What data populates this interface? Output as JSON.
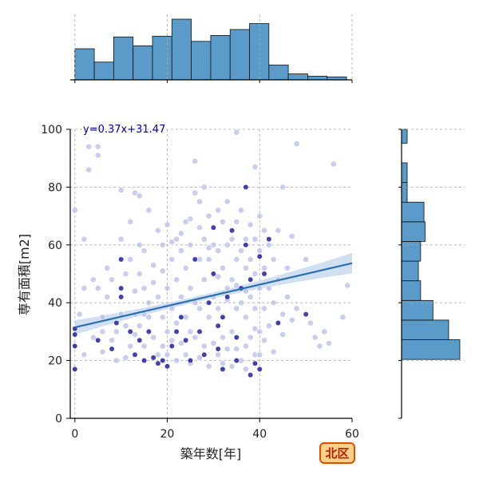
{
  "chart_data": {
    "type": "scatter",
    "title": "",
    "xlabel": "築年数[年]",
    "ylabel": "専有面積[m2]",
    "xlim": [
      -1,
      60
    ],
    "ylim": [
      0,
      100
    ],
    "xticks": [
      0,
      20,
      40,
      60
    ],
    "yticks": [
      0,
      20,
      40,
      60,
      80,
      100
    ],
    "grid": true,
    "regression": {
      "label": "y=0.37x+31.47",
      "slope": 0.37,
      "intercept": 31.47,
      "x_range": [
        0,
        60
      ]
    },
    "x_histogram": {
      "bin_edges": [
        0,
        4.2,
        8.4,
        12.6,
        16.8,
        21,
        25.2,
        29.4,
        33.6,
        37.8,
        42,
        46.2,
        50.4,
        54.6,
        58.8
      ],
      "heights": [
        42,
        24,
        58,
        46,
        59,
        82,
        52,
        60,
        68,
        76,
        20,
        8,
        5,
        4
      ]
    },
    "y_histogram": {
      "bin_edges": [
        0,
        6.8,
        13.6,
        20.4,
        27.2,
        34,
        40.8,
        47.6,
        54.4,
        61.2,
        68,
        74.8,
        81.6,
        88.4,
        95.2,
        100
      ],
      "counts": [
        0,
        0,
        0,
        52,
        42,
        28,
        17,
        15,
        17,
        21,
        20,
        5,
        5,
        0,
        5
      ]
    },
    "points": {
      "dark": [
        [
          0,
          17
        ],
        [
          0,
          25
        ],
        [
          0,
          29
        ],
        [
          0,
          31
        ],
        [
          5,
          27
        ],
        [
          8,
          24
        ],
        [
          10,
          55
        ],
        [
          10,
          45
        ],
        [
          10,
          42
        ],
        [
          12,
          30
        ],
        [
          13,
          22
        ],
        [
          14,
          27
        ],
        [
          15,
          20
        ],
        [
          17,
          21
        ],
        [
          18,
          19
        ],
        [
          19,
          20
        ],
        [
          20,
          18
        ],
        [
          21,
          25
        ],
        [
          22,
          30
        ],
        [
          23,
          35
        ],
        [
          24,
          27
        ],
        [
          25,
          20
        ],
        [
          27,
          30
        ],
        [
          28,
          22
        ],
        [
          29,
          40
        ],
        [
          30,
          66
        ],
        [
          30,
          50
        ],
        [
          31,
          24
        ],
        [
          32,
          35
        ],
        [
          33,
          42
        ],
        [
          34,
          65
        ],
        [
          35,
          20
        ],
        [
          35,
          28
        ],
        [
          36,
          45
        ],
        [
          37,
          80
        ],
        [
          37,
          60
        ],
        [
          38,
          15
        ],
        [
          39,
          19
        ],
        [
          40,
          17
        ],
        [
          40,
          56
        ],
        [
          41,
          50
        ],
        [
          42,
          62
        ],
        [
          44,
          33
        ],
        [
          50,
          36
        ],
        [
          32,
          17
        ],
        [
          38,
          48
        ],
        [
          16,
          30
        ],
        [
          9,
          33
        ],
        [
          26,
          55
        ],
        [
          31,
          32
        ]
      ],
      "light": [
        [
          0,
          72
        ],
        [
          1,
          36
        ],
        [
          2,
          62
        ],
        [
          2,
          45
        ],
        [
          3,
          94
        ],
        [
          3,
          86
        ],
        [
          4,
          28
        ],
        [
          5,
          94
        ],
        [
          5,
          91
        ],
        [
          5,
          45
        ],
        [
          6,
          35
        ],
        [
          6,
          30
        ],
        [
          7,
          52
        ],
        [
          7,
          42
        ],
        [
          8,
          48
        ],
        [
          9,
          30
        ],
        [
          9,
          20
        ],
        [
          10,
          79
        ],
        [
          10,
          62
        ],
        [
          10,
          36
        ],
        [
          11,
          50
        ],
        [
          11,
          32
        ],
        [
          12,
          68
        ],
        [
          12,
          55
        ],
        [
          12,
          25
        ],
        [
          13,
          78
        ],
        [
          13,
          44
        ],
        [
          13,
          36
        ],
        [
          14,
          77
        ],
        [
          14,
          60
        ],
        [
          14,
          50
        ],
        [
          14,
          32
        ],
        [
          15,
          58
        ],
        [
          15,
          45
        ],
        [
          15,
          25
        ],
        [
          16,
          72
        ],
        [
          16,
          40
        ],
        [
          16,
          35
        ],
        [
          17,
          53
        ],
        [
          17,
          28
        ],
        [
          18,
          65
        ],
        [
          18,
          42
        ],
        [
          18,
          22
        ],
        [
          19,
          60
        ],
        [
          19,
          35
        ],
        [
          19,
          25
        ],
        [
          20,
          67
        ],
        [
          20,
          45
        ],
        [
          20,
          30
        ],
        [
          20,
          22
        ],
        [
          21,
          55
        ],
        [
          21,
          38
        ],
        [
          21,
          27
        ],
        [
          22,
          62
        ],
        [
          22,
          48
        ],
        [
          22,
          33
        ],
        [
          22,
          20
        ],
        [
          23,
          58
        ],
        [
          23,
          42
        ],
        [
          23,
          26
        ],
        [
          24,
          68
        ],
        [
          24,
          52
        ],
        [
          24,
          35
        ],
        [
          24,
          22
        ],
        [
          25,
          60
        ],
        [
          25,
          45
        ],
        [
          25,
          30
        ],
        [
          25,
          19
        ],
        [
          26,
          78
        ],
        [
          26,
          89
        ],
        [
          26,
          40
        ],
        [
          26,
          28
        ],
        [
          27,
          75
        ],
        [
          27,
          55
        ],
        [
          27,
          38
        ],
        [
          27,
          21
        ],
        [
          28,
          80
        ],
        [
          28,
          62
        ],
        [
          28,
          48
        ],
        [
          28,
          25
        ],
        [
          29,
          70
        ],
        [
          29,
          55
        ],
        [
          29,
          35
        ],
        [
          29,
          18
        ],
        [
          30,
          60
        ],
        [
          30,
          42
        ],
        [
          30,
          26
        ],
        [
          31,
          72
        ],
        [
          31,
          58
        ],
        [
          31,
          38
        ],
        [
          31,
          22
        ],
        [
          32,
          68
        ],
        [
          32,
          52
        ],
        [
          32,
          28
        ],
        [
          32,
          19
        ],
        [
          33,
          75
        ],
        [
          33,
          60
        ],
        [
          33,
          45
        ],
        [
          33,
          24
        ],
        [
          34,
          62
        ],
        [
          34,
          48
        ],
        [
          34,
          30
        ],
        [
          34,
          18
        ],
        [
          35,
          99
        ],
        [
          35,
          68
        ],
        [
          35,
          55
        ],
        [
          35,
          38
        ],
        [
          35,
          24
        ],
        [
          36,
          72
        ],
        [
          36,
          58
        ],
        [
          36,
          40
        ],
        [
          36,
          20
        ],
        [
          37,
          62
        ],
        [
          37,
          52
        ],
        [
          37,
          35
        ],
        [
          37,
          25
        ],
        [
          37,
          17
        ],
        [
          38,
          67
        ],
        [
          38,
          55
        ],
        [
          38,
          42
        ],
        [
          38,
          28
        ],
        [
          39,
          87
        ],
        [
          39,
          62
        ],
        [
          39,
          50
        ],
        [
          39,
          38
        ],
        [
          39,
          22
        ],
        [
          40,
          70
        ],
        [
          40,
          58
        ],
        [
          40,
          45
        ],
        [
          40,
          30
        ],
        [
          40,
          22
        ],
        [
          41,
          65
        ],
        [
          41,
          52
        ],
        [
          41,
          38
        ],
        [
          42,
          60
        ],
        [
          42,
          45
        ],
        [
          42,
          32
        ],
        [
          43,
          55
        ],
        [
          43,
          40
        ],
        [
          44,
          65
        ],
        [
          44,
          48
        ],
        [
          45,
          80
        ],
        [
          45,
          36
        ],
        [
          46,
          52
        ],
        [
          46,
          42
        ],
        [
          47,
          63
        ],
        [
          48,
          95
        ],
        [
          48,
          38
        ],
        [
          50,
          55
        ],
        [
          51,
          33
        ],
        [
          52,
          28
        ],
        [
          53,
          25
        ],
        [
          54,
          30
        ],
        [
          55,
          26
        ],
        [
          56,
          88
        ],
        [
          58,
          35
        ],
        [
          59,
          46
        ],
        [
          2,
          22
        ],
        [
          4,
          48
        ],
        [
          6,
          23
        ],
        [
          8,
          27
        ],
        [
          11,
          21
        ],
        [
          13,
          29
        ],
        [
          15,
          36
        ],
        [
          17,
          47
        ],
        [
          19,
          51
        ],
        [
          21,
          61
        ],
        [
          23,
          64
        ],
        [
          25,
          69
        ],
        [
          27,
          66
        ],
        [
          29,
          59
        ],
        [
          31,
          49
        ],
        [
          33,
          41
        ],
        [
          35,
          46
        ],
        [
          37,
          44
        ],
        [
          39,
          31
        ],
        [
          41,
          27
        ],
        [
          43,
          23
        ],
        [
          45,
          29
        ],
        [
          47,
          34
        ]
      ]
    }
  },
  "badge": {
    "label": "北区"
  },
  "colors": {
    "hist_fill": "#5a9bca",
    "regression_line": "#2a6fb3",
    "ci_band": "#c9dbee",
    "point_light": "#b8bde8",
    "point_dark": "#1f1fa0",
    "equation_text": "#0000aa",
    "badge_fill": "#ffd089",
    "badge_stroke": "#e04f00",
    "badge_text": "#b02000"
  }
}
